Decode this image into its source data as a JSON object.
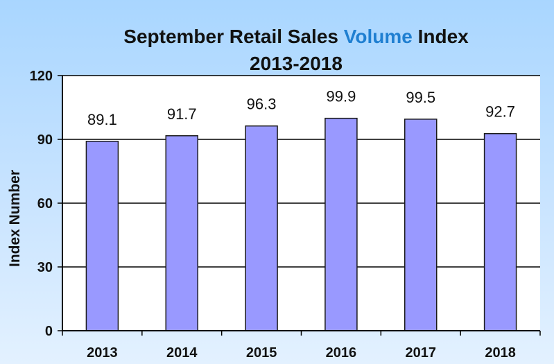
{
  "chart_data": {
    "type": "bar",
    "title_parts": [
      "September Retail Sales ",
      "Volume",
      " Index"
    ],
    "subtitle": "2013-2018",
    "xlabel": "",
    "ylabel": "Index  Number",
    "categories": [
      "2013",
      "2014",
      "2015",
      "2016",
      "2017",
      "2018"
    ],
    "values": [
      89.1,
      91.7,
      96.3,
      99.9,
      99.5,
      92.7
    ],
    "value_labels": [
      "89.1",
      "91.7",
      "96.3",
      "99.9",
      "99.5",
      "92.7"
    ],
    "ylim": [
      0,
      120
    ],
    "yticks": [
      0,
      30,
      60,
      90,
      120
    ],
    "ytick_labels": [
      "0",
      "30",
      "60",
      "90",
      "120"
    ],
    "grid": true,
    "colors": {
      "bar_fill": "#9999ff",
      "bar_stroke": "#1a1a1a",
      "plot_background": "#ffffff",
      "title_highlight": "#1f7fd1"
    }
  }
}
